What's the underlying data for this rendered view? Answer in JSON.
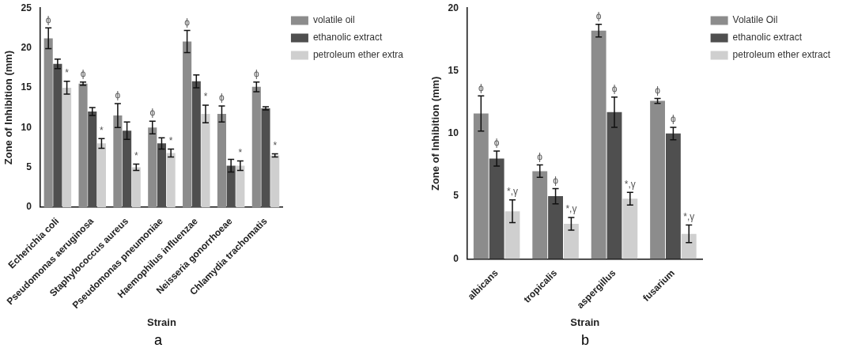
{
  "chart_data": [
    {
      "type": "bar",
      "xlabel": "Strain",
      "ylabel": "Zone of Inhibition (mm)",
      "categories": [
        "Echerichia coli",
        "Pseudomonas aeruginosa",
        "Staphylococcus aureus",
        "Pseudomonas pneumoniae",
        "Haemophilus influenzae",
        "Neisseria gonorrhoeae",
        "Chlamydia trachomatis"
      ],
      "series": [
        {
          "name": "volatile oil",
          "color": "#8c8c8c",
          "values": [
            21.2,
            15.5,
            11.5,
            10,
            20.8,
            11.7,
            15.1
          ],
          "errors": [
            1.3,
            0.2,
            1.5,
            0.8,
            1.4,
            1,
            0.6
          ]
        },
        {
          "name": "ethanolic extract",
          "color": "#4f4f4f",
          "values": [
            18,
            12,
            9.6,
            8,
            15.8,
            5.2,
            12.4
          ],
          "errors": [
            0.6,
            0.5,
            1.1,
            0.7,
            0.8,
            0.8,
            0.2
          ]
        },
        {
          "name": "petroleum ether extra",
          "color": "#cfcfcf",
          "values": [
            15,
            8,
            5,
            6.8,
            11.7,
            5.2,
            6.5
          ],
          "errors": [
            0.8,
            0.6,
            0.4,
            0.5,
            1.1,
            0.6,
            0.2
          ]
        }
      ],
      "ylim": [
        0,
        25
      ],
      "yticks": [
        0,
        5,
        10,
        15,
        20,
        25
      ],
      "grid": false,
      "legend": "right",
      "annotations": [
        "ϕ",
        "*",
        "ϕ",
        "*",
        "ϕ",
        "*",
        "ϕ",
        "*",
        "ϕ",
        "*",
        "ϕ",
        "*",
        "ϕ",
        "*",
        "a"
      ]
    },
    {
      "type": "bar",
      "xlabel": "Strain",
      "ylabel": "Zone of Inhibition (mm)",
      "categories": [
        "albicans",
        "tropicalis",
        "aspergillus",
        "fusarium"
      ],
      "series": [
        {
          "name": "Volatile Oil",
          "color": "#8c8c8c",
          "values": [
            11.6,
            7,
            18.2,
            12.6
          ],
          "errors": [
            1.4,
            0.5,
            0.5,
            0.2
          ]
        },
        {
          "name": "ethanolic extract",
          "color": "#4f4f4f",
          "values": [
            8,
            5,
            11.7,
            10
          ],
          "errors": [
            0.6,
            0.6,
            1.2,
            0.5
          ]
        },
        {
          "name": "petroleum ether extract",
          "color": "#cfcfcf",
          "values": [
            3.8,
            2.8,
            4.8,
            2
          ],
          "errors": [
            0.9,
            0.5,
            0.5,
            0.7
          ]
        }
      ],
      "ylim": [
        0,
        20
      ],
      "yticks": [
        0,
        5,
        10,
        15,
        20
      ],
      "grid": false,
      "legend": "right",
      "annotations": [
        "ϕ",
        "ϕ",
        "*,γ",
        "ϕ",
        "ϕ",
        "*,γ",
        "ϕ",
        "ϕ",
        "*,γ",
        "ϕ",
        "ϕ",
        "*,γ",
        "b"
      ]
    }
  ]
}
